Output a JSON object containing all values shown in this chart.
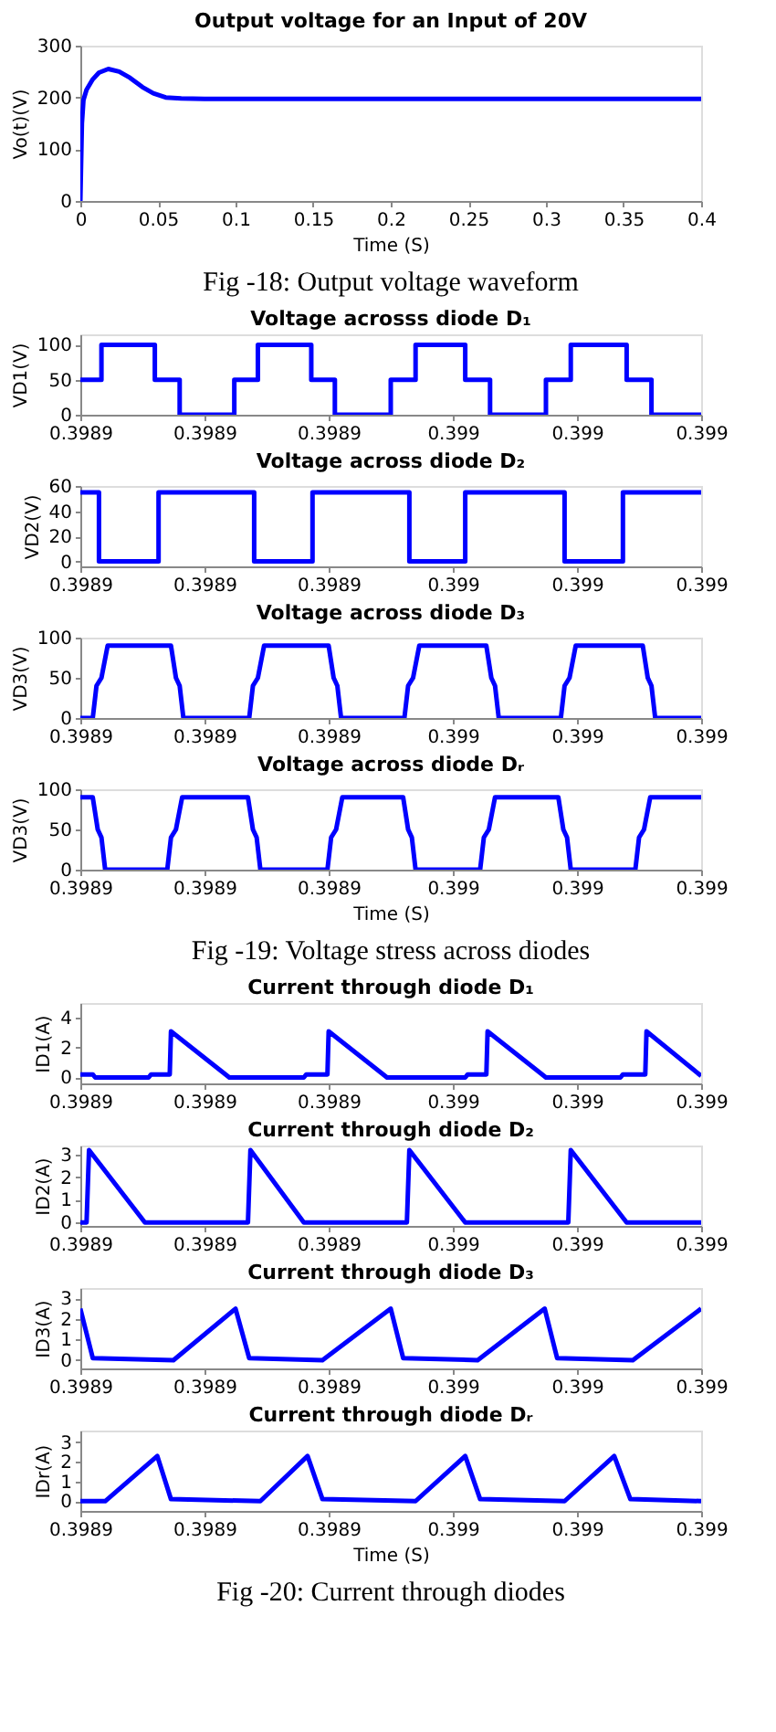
{
  "chart_data": [
    {
      "type": "line",
      "title": "Output voltage for an Input of 20V",
      "xlabel": "Time (S)",
      "ylabel": "Vo(t)(V)",
      "annotations": [
        "Fig -18: Output voltage waveform"
      ],
      "x": [
        0,
        0.001,
        0.002,
        0.004,
        0.008,
        0.012,
        0.018,
        0.025,
        0.032,
        0.04,
        0.047,
        0.055,
        0.065,
        0.08,
        0.4
      ],
      "series": [
        {
          "color": "#0000ff",
          "values": [
            0,
            150,
            195,
            215,
            235,
            248,
            255,
            250,
            238,
            220,
            208,
            200,
            198,
            197,
            197
          ]
        }
      ],
      "xlim": [
        0,
        0.4
      ],
      "xticks": [
        0,
        0.05,
        0.1,
        0.15,
        0.2,
        0.25,
        0.3,
        0.35,
        0.4
      ],
      "ylim": [
        0,
        300
      ],
      "yticks": [
        0,
        100,
        200,
        300
      ]
    },
    {
      "type": "step",
      "title": "Voltage acrosss diode D₁",
      "ylabel": "VD1(V)",
      "x": [
        0.3989,
        0.3989034,
        0.398912,
        0.398916,
        0.3989248,
        0.3989286,
        0.3989372,
        0.398941,
        0.39895,
        0.398954,
        0.398962,
        0.398966,
        0.398975,
        0.398979,
        0.398988,
        0.398992,
        0.399
      ],
      "series": [
        {
          "color": "#0000ff",
          "values": [
            50,
            100,
            50,
            0,
            50,
            100,
            50,
            0,
            50,
            100,
            50,
            0,
            50,
            100,
            50,
            0,
            0
          ]
        }
      ],
      "xlim": [
        0.3989,
        0.399
      ],
      "xticks": [
        0.3989,
        {
          "value": 0.39892,
          "label": "0.3989"
        },
        {
          "value": 0.39894,
          "label": "0.3989"
        },
        {
          "value": 0.39896,
          "label": "0.399"
        },
        {
          "value": 0.39898,
          "label": "0.399"
        },
        0.399
      ],
      "ylim": [
        0,
        115
      ],
      "yticks": [
        0,
        50,
        100
      ]
    },
    {
      "type": "step",
      "title": "Voltage across diode D₂",
      "ylabel": "VD2(V)",
      "x": [
        0.3989,
        0.398903,
        0.3989126,
        0.398928,
        0.3989374,
        0.398953,
        0.398962,
        0.398978,
        0.3989874,
        0.399
      ],
      "series": [
        {
          "color": "#0000ff",
          "values": [
            55,
            0,
            55,
            0,
            55,
            0,
            55,
            0,
            55,
            55
          ]
        }
      ],
      "xlim": [
        0.3989,
        0.399
      ],
      "xticks": [
        0.3989,
        {
          "value": 0.39892,
          "label": "0.3989"
        },
        {
          "value": 0.39894,
          "label": "0.3989"
        },
        {
          "value": 0.39896,
          "label": "0.399"
        },
        {
          "value": 0.39898,
          "label": "0.399"
        },
        0.399
      ],
      "ylim": [
        -4,
        60
      ],
      "yticks": [
        0,
        20,
        40,
        60
      ]
    },
    {
      "type": "line",
      "title": "Voltage across diode D₃",
      "ylabel": "VD3(V)",
      "x": [
        0.3989,
        0.398902,
        0.3989026,
        0.3989034,
        0.3989044,
        0.3989146,
        0.3989154,
        0.398916,
        0.3989166,
        0.3989272,
        0.3989278,
        0.3989286,
        0.3989296,
        0.39894,
        0.3989408,
        0.3989414,
        0.398942,
        0.3989522,
        0.3989528,
        0.3989536,
        0.3989546,
        0.3989654,
        0.3989662,
        0.3989668,
        0.3989674,
        0.3989774,
        0.398978,
        0.3989788,
        0.3989798,
        0.3989906,
        0.3989914,
        0.398992,
        0.3989926,
        0.399
      ],
      "series": [
        {
          "color": "#0000ff",
          "values": [
            0,
            0,
            40,
            50,
            90,
            90,
            50,
            40,
            0,
            0,
            40,
            50,
            90,
            90,
            50,
            40,
            0,
            0,
            40,
            50,
            90,
            90,
            50,
            40,
            0,
            0,
            40,
            50,
            90,
            90,
            50,
            40,
            0,
            0
          ]
        }
      ],
      "xlim": [
        0.3989,
        0.399
      ],
      "xticks": [
        0.3989,
        {
          "value": 0.39892,
          "label": "0.3989"
        },
        {
          "value": 0.39894,
          "label": "0.3989"
        },
        {
          "value": 0.39896,
          "label": "0.399"
        },
        {
          "value": 0.39898,
          "label": "0.399"
        },
        0.399
      ],
      "ylim": [
        0,
        100
      ],
      "yticks": [
        0,
        50,
        100
      ]
    },
    {
      "type": "line",
      "title": "Voltage across diode Dᵣ",
      "xlabel": "Time (S)",
      "ylabel": "VD3(V)",
      "annotations": [
        "Fig -19: Voltage stress across diodes"
      ],
      "x": [
        0.3989,
        0.398902,
        0.3989028,
        0.3989034,
        0.398904,
        0.398914,
        0.3989146,
        0.3989154,
        0.3989164,
        0.398927,
        0.3989278,
        0.3989284,
        0.398929,
        0.3989398,
        0.3989404,
        0.3989412,
        0.3989422,
        0.398952,
        0.3989528,
        0.3989534,
        0.398954,
        0.3989644,
        0.398965,
        0.3989658,
        0.3989668,
        0.398977,
        0.3989778,
        0.3989784,
        0.398979,
        0.3989894,
        0.39899,
        0.3989908,
        0.3989918,
        0.399
      ],
      "series": [
        {
          "color": "#0000ff",
          "values": [
            90,
            90,
            50,
            40,
            0,
            0,
            40,
            50,
            90,
            90,
            50,
            40,
            0,
            0,
            40,
            50,
            90,
            90,
            50,
            40,
            0,
            0,
            40,
            50,
            90,
            90,
            50,
            40,
            0,
            0,
            40,
            50,
            90,
            90
          ]
        }
      ],
      "xlim": [
        0.3989,
        0.399
      ],
      "xticks": [
        0.3989,
        {
          "value": 0.39892,
          "label": "0.3989"
        },
        {
          "value": 0.39894,
          "label": "0.3989"
        },
        {
          "value": 0.39896,
          "label": "0.399"
        },
        {
          "value": 0.39898,
          "label": "0.399"
        },
        0.399
      ],
      "ylim": [
        0,
        100
      ],
      "yticks": [
        0,
        50,
        100
      ]
    },
    {
      "type": "line",
      "title": "Current through diode D₁",
      "ylabel": "ID1(A)",
      "x": [
        0.3989,
        0.398902,
        0.3989024,
        0.398911,
        0.3989114,
        0.3989144,
        0.3989146,
        0.3989234,
        0.398924,
        0.398936,
        0.3989364,
        0.3989398,
        0.39894,
        0.3989488,
        0.3989494,
        0.398962,
        0.3989624,
        0.3989654,
        0.3989656,
        0.3989744,
        0.398975,
        0.398987,
        0.3989874,
        0.398991,
        0.3989912,
        0.399
      ],
      "series": [
        {
          "color": "#0000ff",
          "values": [
            0.2,
            0.2,
            0,
            0,
            0.2,
            0.2,
            3.1,
            0.2,
            0,
            0,
            0.2,
            0.2,
            3.1,
            0.2,
            0,
            0,
            0.2,
            0.2,
            3.1,
            0.2,
            0,
            0,
            0.2,
            0.2,
            3.1,
            0.1
          ]
        }
      ],
      "xlim": [
        0.3989,
        0.399
      ],
      "xticks": [
        0.3989,
        {
          "value": 0.39892,
          "label": "0.3989"
        },
        {
          "value": 0.39894,
          "label": "0.3989"
        },
        {
          "value": 0.39896,
          "label": "0.399"
        },
        {
          "value": 0.39898,
          "label": "0.399"
        },
        0.399
      ],
      "ylim": [
        -0.4,
        5
      ],
      "yticks": [
        0,
        2,
        4
      ]
    },
    {
      "type": "line",
      "title": "Current through diode D₂",
      "ylabel": "ID2(A)",
      "x": [
        0.3989,
        0.398901,
        0.3989014,
        0.3989104,
        0.398927,
        0.3989274,
        0.398936,
        0.3989526,
        0.398953,
        0.398962,
        0.3989786,
        0.398979,
        0.398988,
        0.399
      ],
      "series": [
        {
          "color": "#0000ff",
          "values": [
            0,
            0,
            3.2,
            0,
            0,
            3.2,
            0,
            0,
            3.2,
            0,
            0,
            3.2,
            0,
            0
          ]
        }
      ],
      "xlim": [
        0.3989,
        0.399
      ],
      "xticks": [
        0.3989,
        {
          "value": 0.39892,
          "label": "0.3989"
        },
        {
          "value": 0.39894,
          "label": "0.3989"
        },
        {
          "value": 0.39896,
          "label": "0.399"
        },
        {
          "value": 0.39898,
          "label": "0.399"
        },
        0.399
      ],
      "ylim": [
        -0.15,
        3.4
      ],
      "yticks": [
        0,
        1,
        2,
        3
      ]
    },
    {
      "type": "line",
      "title": "Current through diode D₃",
      "ylabel": "ID3(A)",
      "x": [
        0.3989,
        0.398902,
        0.398915,
        0.398925,
        0.3989272,
        0.398939,
        0.39895,
        0.398952,
        0.398964,
        0.3989748,
        0.3989768,
        0.398989,
        0.399
      ],
      "series": [
        {
          "color": "#0000ff",
          "values": [
            2.5,
            0.1,
            0,
            2.5,
            0.1,
            0,
            2.5,
            0.1,
            0,
            2.5,
            0.1,
            0,
            2.5
          ]
        }
      ],
      "xlim": [
        0.3989,
        0.399
      ],
      "xticks": [
        0.3989,
        {
          "value": 0.39892,
          "label": "0.3989"
        },
        {
          "value": 0.39894,
          "label": "0.3989"
        },
        {
          "value": 0.39896,
          "label": "0.399"
        },
        {
          "value": 0.39898,
          "label": "0.399"
        },
        0.399
      ],
      "ylim": [
        -0.4,
        3.5
      ],
      "yticks": [
        0,
        1,
        2,
        3
      ]
    },
    {
      "type": "line",
      "title": "Current through diode Dᵣ",
      "xlabel": "Time (S)",
      "ylabel": "IDr(A)",
      "annotations": [
        "Fig -20: Current through diodes"
      ],
      "x": [
        0.3989,
        0.398904,
        0.3989124,
        0.3989146,
        0.398929,
        0.3989366,
        0.398939,
        0.398954,
        0.398962,
        0.3989644,
        0.398978,
        0.398986,
        0.3989886,
        0.399
      ],
      "series": [
        {
          "color": "#0000ff",
          "values": [
            0,
            0,
            2.3,
            0.1,
            0,
            2.3,
            0.1,
            0,
            2.3,
            0.1,
            0,
            2.3,
            0.1,
            0
          ]
        }
      ],
      "xlim": [
        0.3989,
        0.399
      ],
      "xticks": [
        0.3989,
        {
          "value": 0.39892,
          "label": "0.3989"
        },
        {
          "value": 0.39894,
          "label": "0.3989"
        },
        {
          "value": 0.39896,
          "label": "0.399"
        },
        {
          "value": 0.39898,
          "label": "0.399"
        },
        0.399
      ],
      "ylim": [
        -0.5,
        3.6
      ],
      "yticks": [
        0,
        1,
        2,
        3
      ]
    }
  ]
}
